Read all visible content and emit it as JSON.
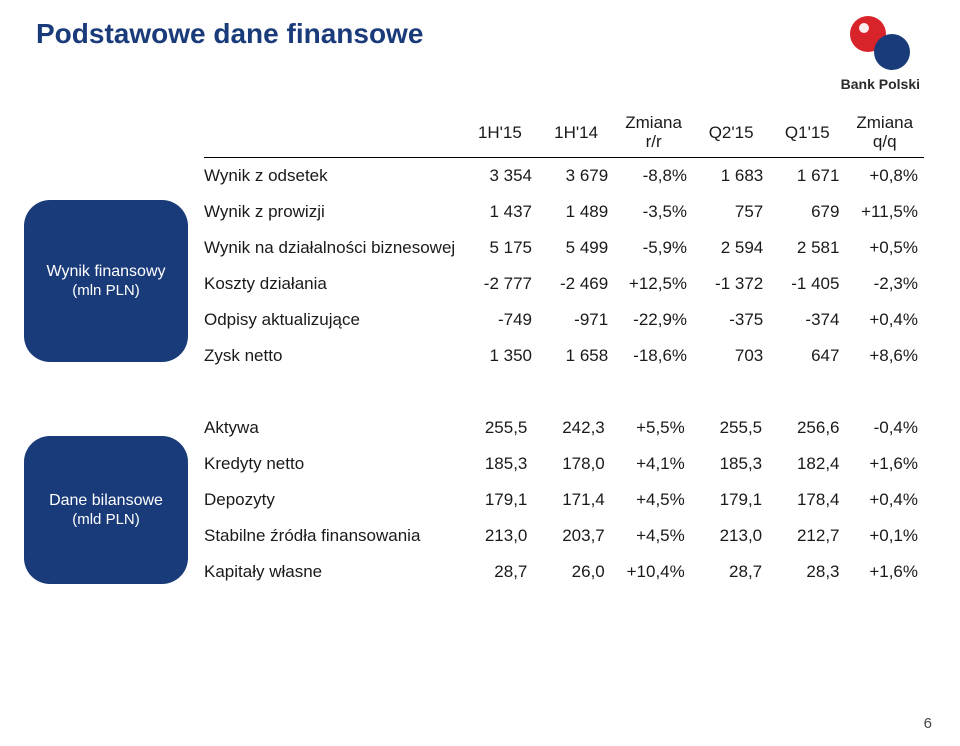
{
  "page": {
    "title": "Podstawowe dane finansowe",
    "number": "6",
    "logo_text": "Bank Polski",
    "logo_colors": {
      "red": "#d8232a",
      "blue": "#1a3b7a",
      "gold": "#c8a43c"
    }
  },
  "pills": {
    "financial": {
      "line1": "Wynik finansowy",
      "line2": "(mln PLN)"
    },
    "balance": {
      "line1": "Dane bilansowe",
      "line2": "(mld PLN)"
    }
  },
  "table": {
    "headers": {
      "c1": "1H'15",
      "c2": "1H'14",
      "c3": "Zmiana r/r",
      "c4": "Q2'15",
      "c5": "Q1'15",
      "c6": "Zmiana q/q"
    },
    "rows1": [
      {
        "label": "Wynik z odsetek",
        "c1": "3 354",
        "c2": "3 679",
        "c3": "-8,8%",
        "c4": "1 683",
        "c5": "1 671",
        "c6": "+0,8%"
      },
      {
        "label": "Wynik z prowizji",
        "c1": "1 437",
        "c2": "1 489",
        "c3": "-3,5%",
        "c4": "757",
        "c5": "679",
        "c6": "+11,5%"
      },
      {
        "label": "Wynik na działalności biznesowej",
        "c1": "5 175",
        "c2": "5 499",
        "c3": "-5,9%",
        "c4": "2 594",
        "c5": "2 581",
        "c6": "+0,5%"
      },
      {
        "label": "Koszty działania",
        "c1": "-2 777",
        "c2": "-2 469",
        "c3": "+12,5%",
        "c4": "-1 372",
        "c5": "-1 405",
        "c6": "-2,3%"
      },
      {
        "label": "Odpisy aktualizujące",
        "c1": "-749",
        "c2": "-971",
        "c3": "-22,9%",
        "c4": "-375",
        "c5": "-374",
        "c6": "+0,4%"
      },
      {
        "label": "Zysk netto",
        "c1": "1 350",
        "c2": "1 658",
        "c3": "-18,6%",
        "c4": "703",
        "c5": "647",
        "c6": "+8,6%"
      }
    ],
    "rows2": [
      {
        "label": "Aktywa",
        "c1": "255,5",
        "c2": "242,3",
        "c3": "+5,5%",
        "c4": "255,5",
        "c5": "256,6",
        "c6": "-0,4%"
      },
      {
        "label": "Kredyty netto",
        "c1": "185,3",
        "c2": "178,0",
        "c3": "+4,1%",
        "c4": "185,3",
        "c5": "182,4",
        "c6": "+1,6%"
      },
      {
        "label": "Depozyty",
        "c1": "179,1",
        "c2": "171,4",
        "c3": "+4,5%",
        "c4": "179,1",
        "c5": "178,4",
        "c6": "+0,4%"
      },
      {
        "label": "Stabilne źródła finansowania",
        "c1": "213,0",
        "c2": "203,7",
        "c3": "+4,5%",
        "c4": "213,0",
        "c5": "212,7",
        "c6": "+0,1%"
      },
      {
        "label": "Kapitały własne",
        "c1": "28,7",
        "c2": "26,0",
        "c3": "+10,4%",
        "c4": "28,7",
        "c5": "28,3",
        "c6": "+1,6%"
      }
    ]
  }
}
